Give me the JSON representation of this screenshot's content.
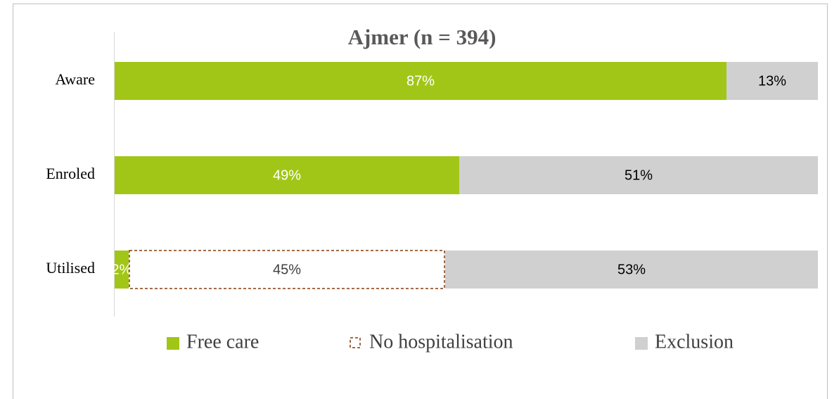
{
  "chart_data": {
    "type": "stacked-barh",
    "title": "Ajmer (n = 394)",
    "categories": [
      "Aware",
      "Enroled",
      "Utilised"
    ],
    "xlim": [
      0,
      100
    ],
    "series": [
      {
        "name": "Free care",
        "color": "#a2c617",
        "label_color": "#ffffff",
        "values": [
          87,
          49,
          2
        ],
        "value_labels": [
          "87%",
          "49%",
          "2%"
        ]
      },
      {
        "name": "No hospitalisation",
        "color": "#ffffff",
        "edgecolor": "#843c0c",
        "dashed": true,
        "label_color": "#404040",
        "values": [
          null,
          null,
          45
        ],
        "value_labels": [
          null,
          null,
          "45%"
        ]
      },
      {
        "name": "Exclusion",
        "color": "#d0d0d0",
        "label_color": "#000000",
        "values": [
          13,
          51,
          53
        ],
        "value_labels": [
          "13%",
          "51%",
          "53%"
        ]
      }
    ],
    "legend": "bottom"
  }
}
